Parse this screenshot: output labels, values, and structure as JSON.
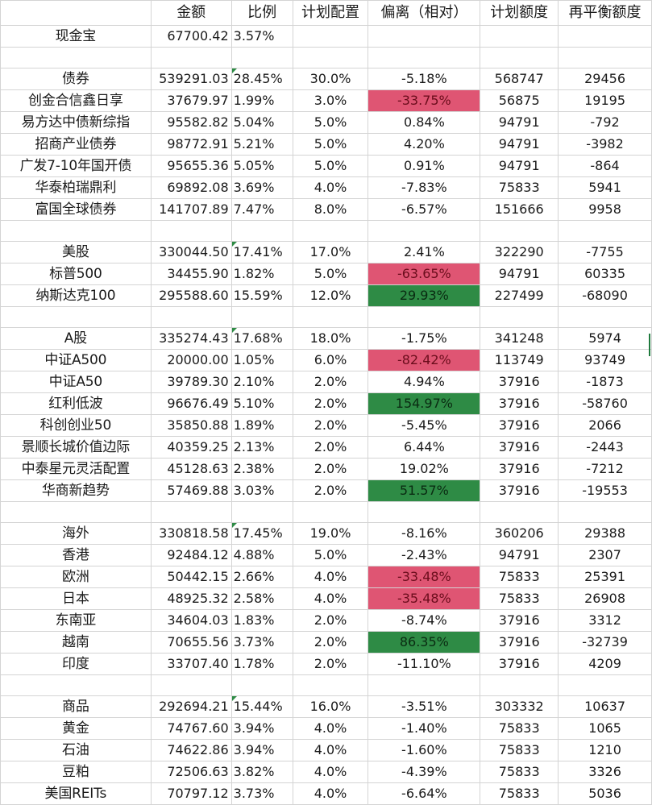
{
  "headers": [
    "金额",
    "比例",
    "计划配置",
    "偏离（相对）",
    "计划额度",
    "再平衡额度"
  ],
  "rows": [
    {
      "name": "现金宝",
      "amount": "67700.42",
      "ratio": "3.57%",
      "plan": "",
      "deviation": "",
      "planAmt": "",
      "rebalance": ""
    },
    {
      "blank": true
    },
    {
      "name": "债券",
      "amount": "539291.03",
      "ratio": "28.45%",
      "plan": "30.0%",
      "deviation": "-5.18%",
      "planAmt": "568747",
      "rebalance": "29456",
      "tri": true
    },
    {
      "name": "创金合信鑫日享",
      "amount": "37679.97",
      "ratio": "1.99%",
      "plan": "3.0%",
      "deviation": "-33.75%",
      "planAmt": "56875",
      "rebalance": "19195",
      "hl": "red"
    },
    {
      "name": "易方达中债新综指",
      "amount": "95582.82",
      "ratio": "5.04%",
      "plan": "5.0%",
      "deviation": "0.84%",
      "planAmt": "94791",
      "rebalance": "-792"
    },
    {
      "name": "招商产业债券",
      "amount": "98772.91",
      "ratio": "5.21%",
      "plan": "5.0%",
      "deviation": "4.20%",
      "planAmt": "94791",
      "rebalance": "-3982"
    },
    {
      "name": "广发7-10年国开债",
      "amount": "95655.36",
      "ratio": "5.05%",
      "plan": "5.0%",
      "deviation": "0.91%",
      "planAmt": "94791",
      "rebalance": "-864"
    },
    {
      "name": "华泰柏瑞鼎利",
      "amount": "69892.08",
      "ratio": "3.69%",
      "plan": "4.0%",
      "deviation": "-7.83%",
      "planAmt": "75833",
      "rebalance": "5941"
    },
    {
      "name": "富国全球债券",
      "amount": "141707.89",
      "ratio": "7.47%",
      "plan": "8.0%",
      "deviation": "-6.57%",
      "planAmt": "151666",
      "rebalance": "9958"
    },
    {
      "blank": true
    },
    {
      "name": "美股",
      "amount": "330044.50",
      "ratio": "17.41%",
      "plan": "17.0%",
      "deviation": "2.41%",
      "planAmt": "322290",
      "rebalance": "-7755",
      "tri": true
    },
    {
      "name": "标普500",
      "amount": "34455.90",
      "ratio": "1.82%",
      "plan": "5.0%",
      "deviation": "-63.65%",
      "planAmt": "94791",
      "rebalance": "60335",
      "hl": "red"
    },
    {
      "name": "纳斯达克100",
      "amount": "295588.60",
      "ratio": "15.59%",
      "plan": "12.0%",
      "deviation": "29.93%",
      "planAmt": "227499",
      "rebalance": "-68090",
      "hl": "green"
    },
    {
      "blank": true
    },
    {
      "name": "A股",
      "amount": "335274.43",
      "ratio": "17.68%",
      "plan": "18.0%",
      "deviation": "-1.75%",
      "planAmt": "341248",
      "rebalance": "5974",
      "tri": true
    },
    {
      "name": "中证A500",
      "amount": "20000.00",
      "ratio": "1.05%",
      "plan": "6.0%",
      "deviation": "-82.42%",
      "planAmt": "113749",
      "rebalance": "93749",
      "hl": "red"
    },
    {
      "name": "中证A50",
      "amount": "39789.30",
      "ratio": "2.10%",
      "plan": "2.0%",
      "deviation": "4.94%",
      "planAmt": "37916",
      "rebalance": "-1873"
    },
    {
      "name": "红利低波",
      "amount": "96676.49",
      "ratio": "5.10%",
      "plan": "2.0%",
      "deviation": "154.97%",
      "planAmt": "37916",
      "rebalance": "-58760",
      "hl": "green"
    },
    {
      "name": "科创创业50",
      "amount": "35850.88",
      "ratio": "1.89%",
      "plan": "2.0%",
      "deviation": "-5.45%",
      "planAmt": "37916",
      "rebalance": "2066"
    },
    {
      "name": "景顺长城价值边际",
      "amount": "40359.25",
      "ratio": "2.13%",
      "plan": "2.0%",
      "deviation": "6.44%",
      "planAmt": "37916",
      "rebalance": "-2443"
    },
    {
      "name": "中泰星元灵活配置",
      "amount": "45128.63",
      "ratio": "2.38%",
      "plan": "2.0%",
      "deviation": "19.02%",
      "planAmt": "37916",
      "rebalance": "-7212"
    },
    {
      "name": "华商新趋势",
      "amount": "57469.88",
      "ratio": "3.03%",
      "plan": "2.0%",
      "deviation": "51.57%",
      "planAmt": "37916",
      "rebalance": "-19553",
      "hl": "green"
    },
    {
      "blank": true
    },
    {
      "name": "海外",
      "amount": "330818.58",
      "ratio": "17.45%",
      "plan": "19.0%",
      "deviation": "-8.16%",
      "planAmt": "360206",
      "rebalance": "29388",
      "tri": true
    },
    {
      "name": "香港",
      "amount": "92484.12",
      "ratio": "4.88%",
      "plan": "5.0%",
      "deviation": "-2.43%",
      "planAmt": "94791",
      "rebalance": "2307"
    },
    {
      "name": "欧洲",
      "amount": "50442.15",
      "ratio": "2.66%",
      "plan": "4.0%",
      "deviation": "-33.48%",
      "planAmt": "75833",
      "rebalance": "25391",
      "hl": "red"
    },
    {
      "name": "日本",
      "amount": "48925.32",
      "ratio": "2.58%",
      "plan": "4.0%",
      "deviation": "-35.48%",
      "planAmt": "75833",
      "rebalance": "26908",
      "hl": "red"
    },
    {
      "name": "东南亚",
      "amount": "34604.03",
      "ratio": "1.83%",
      "plan": "2.0%",
      "deviation": "-8.74%",
      "planAmt": "37916",
      "rebalance": "3312"
    },
    {
      "name": "越南",
      "amount": "70655.56",
      "ratio": "3.73%",
      "plan": "2.0%",
      "deviation": "86.35%",
      "planAmt": "37916",
      "rebalance": "-32739",
      "hl": "green"
    },
    {
      "name": "印度",
      "amount": "33707.40",
      "ratio": "1.78%",
      "plan": "2.0%",
      "deviation": "-11.10%",
      "planAmt": "37916",
      "rebalance": "4209"
    },
    {
      "blank": true
    },
    {
      "name": "商品",
      "amount": "292694.21",
      "ratio": "15.44%",
      "plan": "16.0%",
      "deviation": "-3.51%",
      "planAmt": "303332",
      "rebalance": "10637",
      "tri": true
    },
    {
      "name": "黄金",
      "amount": "74767.60",
      "ratio": "3.94%",
      "plan": "4.0%",
      "deviation": "-1.40%",
      "planAmt": "75833",
      "rebalance": "1065"
    },
    {
      "name": "石油",
      "amount": "74622.86",
      "ratio": "3.94%",
      "plan": "4.0%",
      "deviation": "-1.60%",
      "planAmt": "75833",
      "rebalance": "1210"
    },
    {
      "name": "豆粕",
      "amount": "72506.63",
      "ratio": "3.82%",
      "plan": "4.0%",
      "deviation": "-4.39%",
      "planAmt": "75833",
      "rebalance": "3326"
    },
    {
      "name": "美国REITs",
      "amount": "70797.12",
      "ratio": "3.73%",
      "plan": "4.0%",
      "deviation": "-6.64%",
      "planAmt": "75833",
      "rebalance": "5036"
    }
  ]
}
